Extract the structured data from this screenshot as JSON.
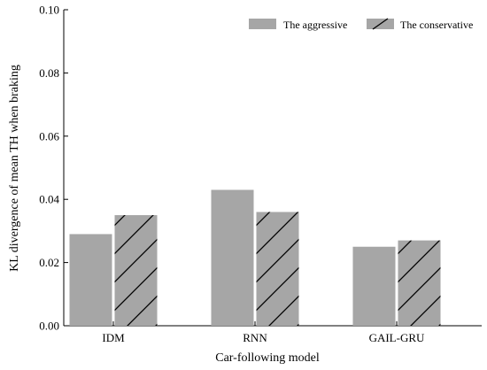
{
  "chart_data": {
    "type": "bar",
    "xlabel": "Car-following model",
    "ylabel": "KL divergence of mean TH when braking",
    "categories": [
      "IDM",
      "RNN",
      "GAIL-GRU"
    ],
    "ylim": [
      0,
      0.1
    ],
    "yticks": [
      "0.00",
      "0.02",
      "0.04",
      "0.06",
      "0.08",
      "0.10"
    ],
    "grid": false,
    "legend_position": "top-right",
    "series": [
      {
        "name": "The aggressive",
        "values": [
          0.029,
          0.043,
          0.025
        ],
        "color": "#a6a6a6",
        "pattern": "solid"
      },
      {
        "name": "The conservative",
        "values": [
          0.035,
          0.036,
          0.027
        ],
        "color": "#a6a6a6",
        "pattern": "hatch"
      }
    ]
  }
}
